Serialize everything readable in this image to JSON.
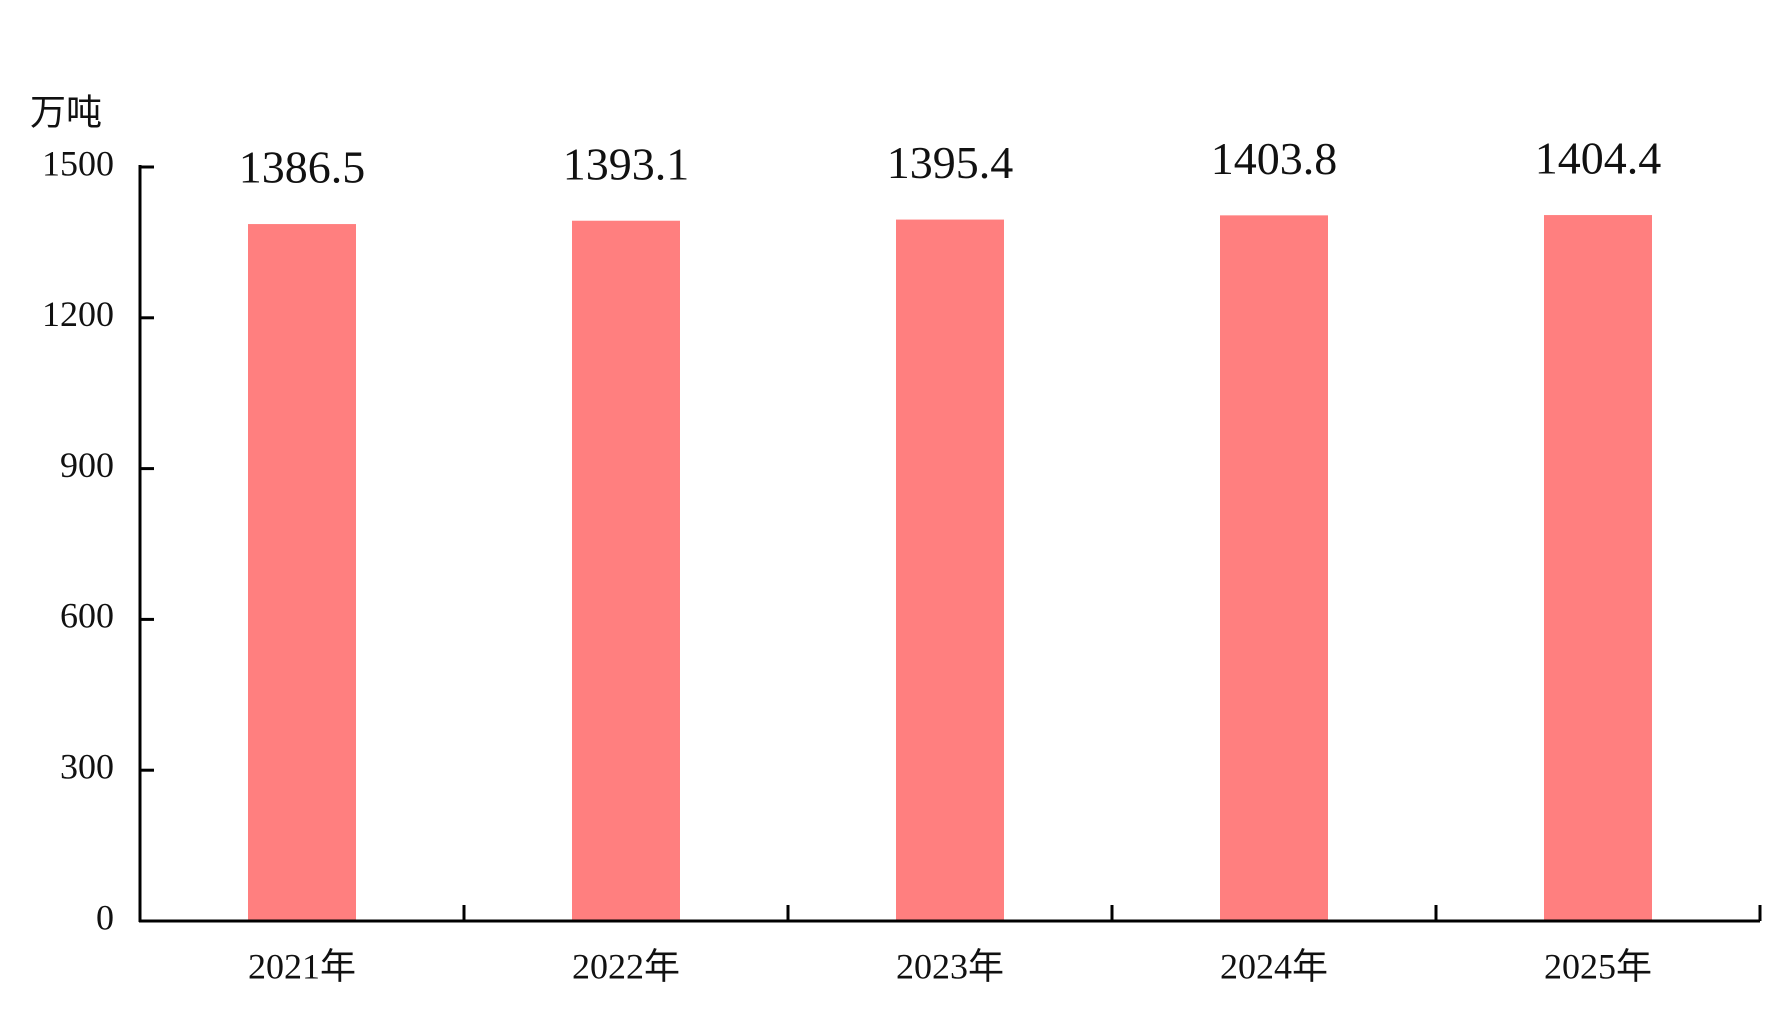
{
  "chart_data": {
    "type": "bar",
    "y_label": "万吨",
    "categories": [
      "2021年",
      "2022年",
      "2023年",
      "2024年",
      "2025年"
    ],
    "values": [
      1386.5,
      1393.1,
      1395.4,
      1403.8,
      1404.4
    ],
    "color": "#ff7f7f",
    "ylim": [
      0,
      1500
    ],
    "yticks": [
      0,
      300,
      600,
      900,
      1200,
      1500
    ],
    "grid": false
  }
}
